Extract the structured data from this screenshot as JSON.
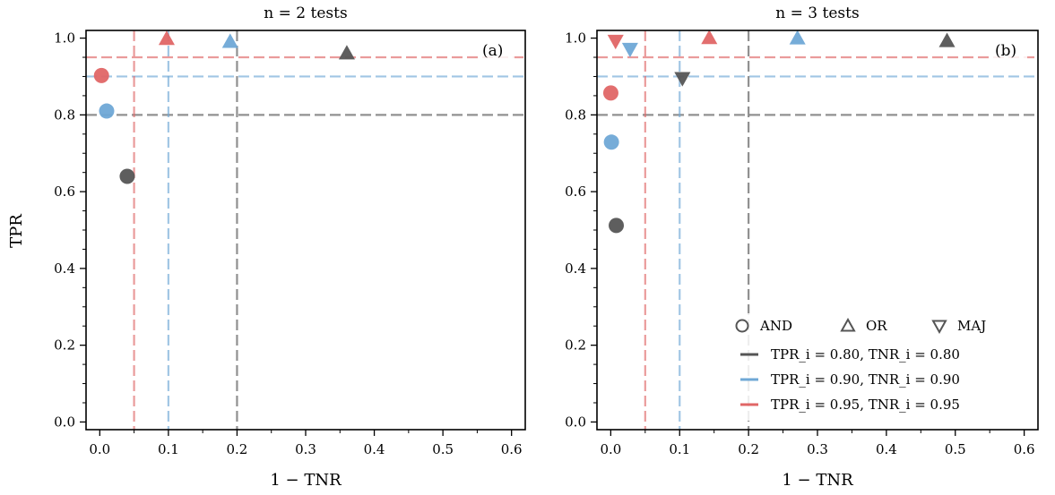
{
  "ylabel": "TPR",
  "legend": {
    "markers": [
      {
        "shape": "circle",
        "label": "AND"
      },
      {
        "shape": "triangle-up",
        "label": "OR"
      },
      {
        "shape": "triangle-down",
        "label": "MAJ"
      }
    ],
    "lines": [
      {
        "label": "TPR_i = 0.80, TNR_i = 0.80",
        "color": "#555555"
      },
      {
        "label": "TPR_i = 0.90, TNR_i = 0.90",
        "color": "#6fa8d6"
      },
      {
        "label": "TPR_i = 0.95, TNR_i = 0.95",
        "color": "#e06666"
      }
    ],
    "placement": "lower-right of panel (b)"
  },
  "chart_data": [
    {
      "type": "scatter",
      "panel_label": "(a)",
      "title": "n = 2 tests",
      "xlabel": "1 − TNR",
      "ylabel": "TPR",
      "xlim": [
        -0.02,
        0.62
      ],
      "ylim": [
        -0.02,
        1.02
      ],
      "x_ticks": [
        "0.0",
        "0.1",
        "0.2",
        "0.3",
        "0.4",
        "0.5",
        "0.6"
      ],
      "y_ticks": [
        "0.0",
        "0.2",
        "0.4",
        "0.6",
        "0.8",
        "1.0"
      ],
      "reference_lines": [
        {
          "series": "0.80",
          "fpr": 0.2,
          "tpr": 0.8
        },
        {
          "series": "0.90",
          "fpr": 0.1,
          "tpr": 0.9
        },
        {
          "series": "0.95",
          "fpr": 0.05,
          "tpr": 0.95
        }
      ],
      "points": [
        {
          "series": "0.80",
          "rule": "AND",
          "x": 0.04,
          "y": 0.64
        },
        {
          "series": "0.80",
          "rule": "OR",
          "x": 0.36,
          "y": 0.96
        },
        {
          "series": "0.90",
          "rule": "AND",
          "x": 0.01,
          "y": 0.81
        },
        {
          "series": "0.90",
          "rule": "OR",
          "x": 0.19,
          "y": 0.99
        },
        {
          "series": "0.95",
          "rule": "AND",
          "x": 0.0025,
          "y": 0.9025
        },
        {
          "series": "0.95",
          "rule": "OR",
          "x": 0.0975,
          "y": 0.9975
        }
      ]
    },
    {
      "type": "scatter",
      "panel_label": "(b)",
      "title": "n = 3 tests",
      "xlabel": "1 − TNR",
      "ylabel": "",
      "xlim": [
        -0.02,
        0.62
      ],
      "ylim": [
        -0.02,
        1.02
      ],
      "x_ticks": [
        "0.0",
        "0.1",
        "0.2",
        "0.3",
        "0.4",
        "0.5",
        "0.6"
      ],
      "y_ticks": [
        "0.0",
        "0.2",
        "0.4",
        "0.6",
        "0.8",
        "1.0"
      ],
      "reference_lines": [
        {
          "series": "0.80",
          "fpr": 0.2,
          "tpr": 0.8
        },
        {
          "series": "0.90",
          "fpr": 0.1,
          "tpr": 0.9
        },
        {
          "series": "0.95",
          "fpr": 0.05,
          "tpr": 0.95
        }
      ],
      "points": [
        {
          "series": "0.80",
          "rule": "AND",
          "x": 0.008,
          "y": 0.512
        },
        {
          "series": "0.80",
          "rule": "OR",
          "x": 0.488,
          "y": 0.992
        },
        {
          "series": "0.80",
          "rule": "MAJ",
          "x": 0.104,
          "y": 0.896
        },
        {
          "series": "0.90",
          "rule": "AND",
          "x": 0.001,
          "y": 0.729
        },
        {
          "series": "0.90",
          "rule": "OR",
          "x": 0.271,
          "y": 0.999
        },
        {
          "series": "0.90",
          "rule": "MAJ",
          "x": 0.028,
          "y": 0.972
        },
        {
          "series": "0.95",
          "rule": "AND",
          "x": 0.0001,
          "y": 0.857
        },
        {
          "series": "0.95",
          "rule": "OR",
          "x": 0.143,
          "y": 0.9999
        },
        {
          "series": "0.95",
          "rule": "MAJ",
          "x": 0.007,
          "y": 0.993
        }
      ]
    }
  ]
}
